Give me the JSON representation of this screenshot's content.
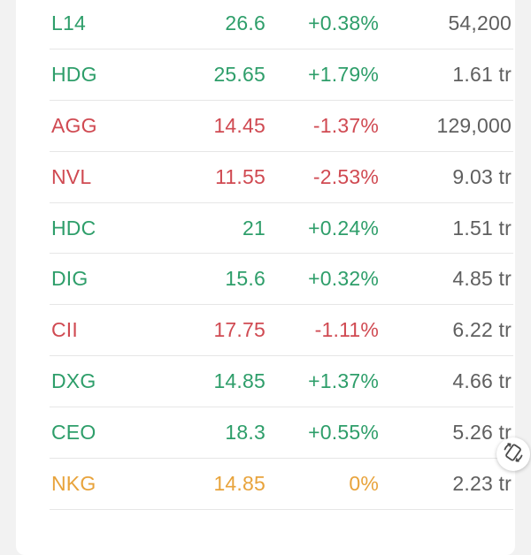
{
  "rows": [
    {
      "symbol": "L14",
      "price": "26.6",
      "change": "+0.38%",
      "volume": "54,200",
      "trend": "up"
    },
    {
      "symbol": "HDG",
      "price": "25.65",
      "change": "+1.79%",
      "volume": "1.61 tr",
      "trend": "up"
    },
    {
      "symbol": "AGG",
      "price": "14.45",
      "change": "-1.37%",
      "volume": "129,000",
      "trend": "down"
    },
    {
      "symbol": "NVL",
      "price": "11.55",
      "change": "-2.53%",
      "volume": "9.03 tr",
      "trend": "down"
    },
    {
      "symbol": "HDC",
      "price": "21",
      "change": "+0.24%",
      "volume": "1.51 tr",
      "trend": "up"
    },
    {
      "symbol": "DIG",
      "price": "15.6",
      "change": "+0.32%",
      "volume": "4.85 tr",
      "trend": "up"
    },
    {
      "symbol": "CII",
      "price": "17.75",
      "change": "-1.11%",
      "volume": "6.22 tr",
      "trend": "down"
    },
    {
      "symbol": "DXG",
      "price": "14.85",
      "change": "+1.37%",
      "volume": "4.66 tr",
      "trend": "up"
    },
    {
      "symbol": "CEO",
      "price": "18.3",
      "change": "+0.55%",
      "volume": "5.26 tr",
      "trend": "up"
    },
    {
      "symbol": "NKG",
      "price": "14.85",
      "change": "0%",
      "volume": "2.23 tr",
      "trend": "ref"
    }
  ],
  "colors": {
    "up": "#2e9e6a",
    "down": "#d04a52",
    "reference": "#e8a33b",
    "volume_text": "#5f5f5f",
    "background": "#f2f2f2",
    "card": "#ffffff"
  },
  "floating_button": {
    "icon": "screen-rotate-icon"
  }
}
